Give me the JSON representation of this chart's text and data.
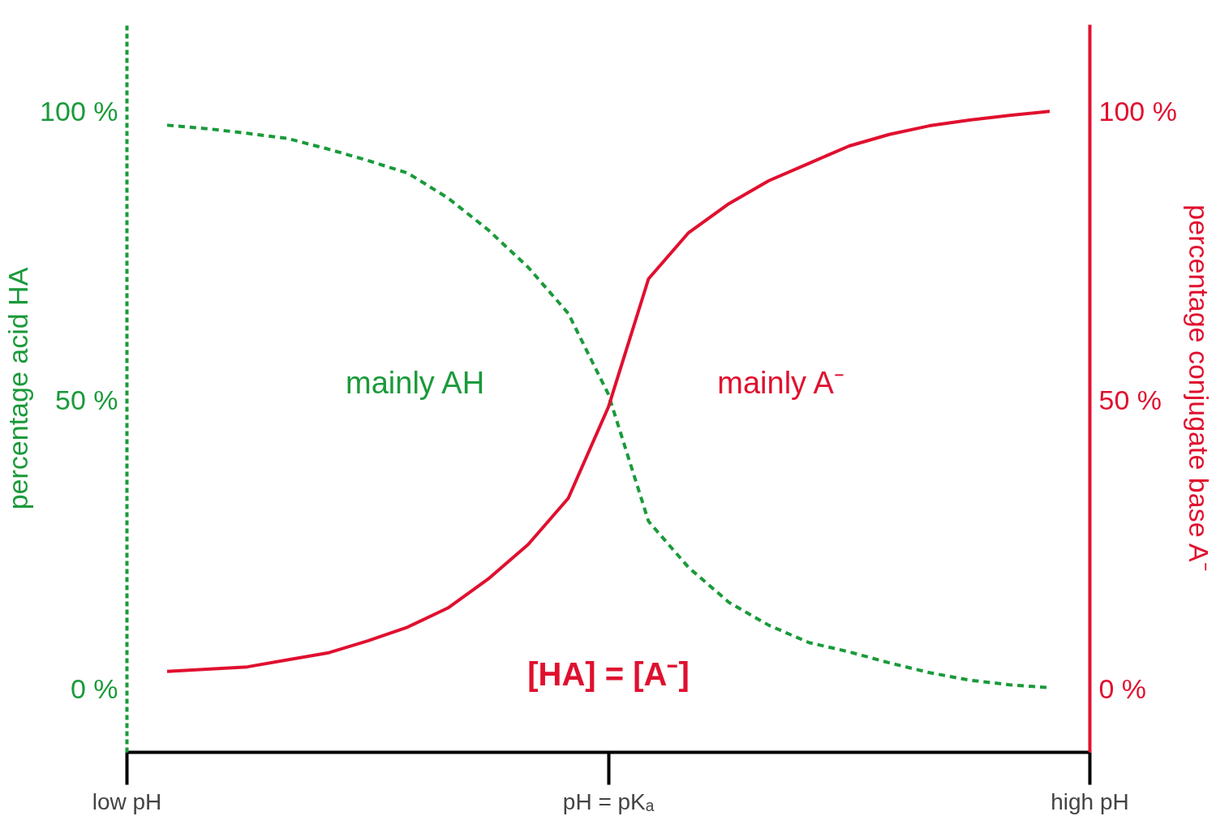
{
  "chart_data": {
    "type": "line",
    "ylabel": "percentage acid HA",
    "y2label": "percentage conjugate base A⁻",
    "categories": [
      "low pH",
      null,
      null,
      null,
      null,
      null,
      null,
      null,
      null,
      null,
      null,
      null,
      "pH = pKₐ",
      null,
      null,
      null,
      null,
      null,
      null,
      null,
      null,
      null,
      null,
      null,
      "high pH"
    ],
    "ylim": [
      -11,
      115
    ],
    "yticks": [
      {
        "value": 0,
        "label": "0 %"
      },
      {
        "value": 50,
        "label": "50 %"
      },
      {
        "value": 100,
        "label": "100 %"
      }
    ],
    "y2lim": [
      -11,
      115
    ],
    "y2ticks": [
      {
        "value": 0,
        "label": "0 %"
      },
      {
        "value": 50,
        "label": "50 %"
      },
      {
        "value": 100,
        "label": "100 %"
      }
    ],
    "grid": false,
    "marker": "none",
    "series": [
      {
        "color": "#1a9a3a",
        "line_style": "dashed",
        "values": [
          null,
          97.6,
          97,
          96.2,
          95.3,
          93.5,
          91.5,
          89.3,
          85,
          79.5,
          73,
          65,
          51,
          29,
          21,
          15,
          11,
          8,
          6.4,
          4.5,
          2.8,
          1.5,
          0.7,
          0.2,
          null
        ]
      },
      {
        "color": "#e0102f",
        "line_style": "solid",
        "axis": "y2",
        "values": [
          null,
          3.0,
          3.4,
          3.8,
          5.0,
          6.2,
          8.3,
          10.7,
          14,
          19,
          25,
          33,
          48.8,
          71,
          79,
          84,
          88,
          91,
          94,
          96,
          97.5,
          98.5,
          99.3,
          100,
          null
        ]
      }
    ],
    "annotations": [
      "mainly AH",
      "mainly A⁻",
      "[HA] = [A⁻]"
    ]
  }
}
